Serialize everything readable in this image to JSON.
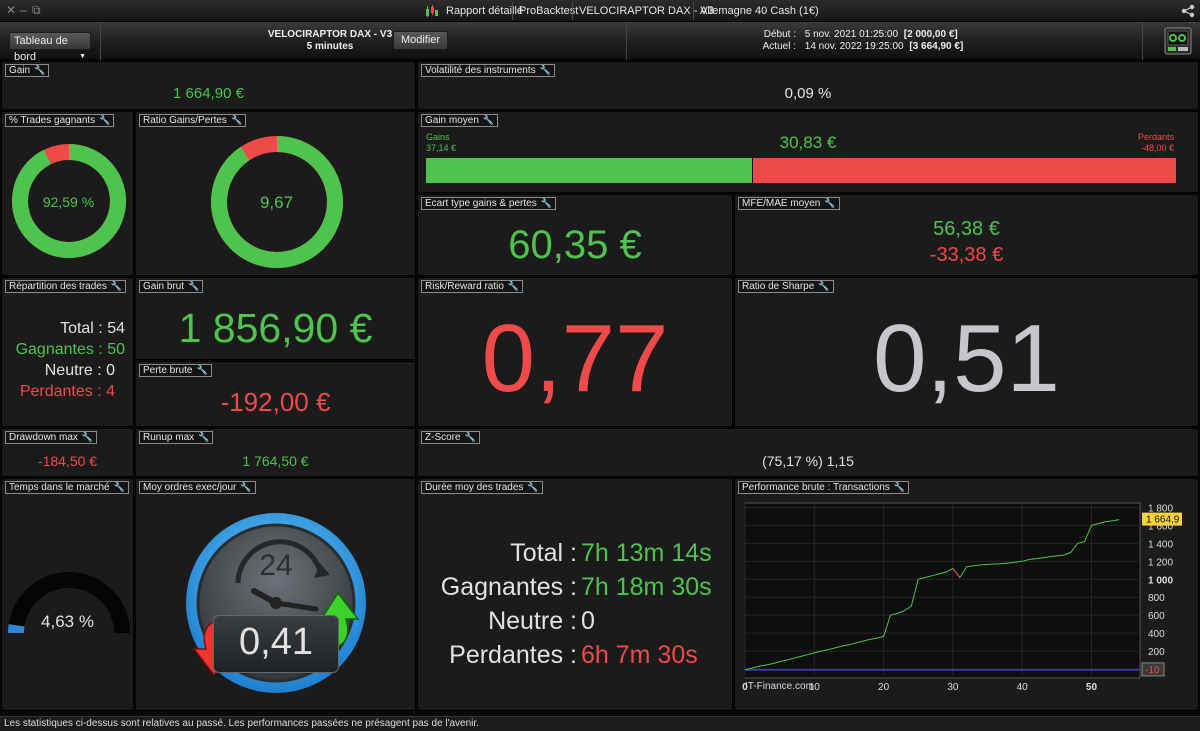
{
  "window": {
    "tabs": [
      "Rapport détaillé",
      "ProBacktest",
      "VELOCIRAPTOR DAX - V3",
      "Allemagne 40 Cash (1€)"
    ],
    "controls": [
      "✕",
      "–",
      "⧉"
    ]
  },
  "toolbar": {
    "dashboard_label": "Tableau de bord",
    "strategy_name": "VELOCIRAPTOR DAX - V3",
    "timeframe": "5 minutes",
    "modify_label": "Modifier",
    "start_label": "Début :",
    "start_date": "5 nov. 2021 01:25:00",
    "start_value": "[2 000,00 €]",
    "current_label": "Actuel :",
    "current_date": "14 nov. 2022 19:25:00",
    "current_value": "[3 664,90 €]"
  },
  "panels": {
    "gain": {
      "label": "Gain",
      "value": "1 664,90 €"
    },
    "volatility": {
      "label": "Volatilité des instruments",
      "value": "0,09 %"
    },
    "win_pct": {
      "label": "% Trades gagnants",
      "value": "92,59 %",
      "fraction": 0.9259
    },
    "ratio": {
      "label": "Ratio Gains/Pertes",
      "value": "9,67",
      "fraction": 0.9063
    },
    "avg_gain": {
      "label": "Gain moyen",
      "gains_label": "Gains",
      "gains_value": "37,14 €",
      "losses_label": "Perdants",
      "losses_value": "-48,00 €",
      "value": "30,83 €",
      "gain_fraction": 0.436
    },
    "std": {
      "label": "Ecart type gains & pertes",
      "value": "60,35 €"
    },
    "mfe": {
      "label": "MFE/MAE moyen",
      "mfe": "56,38 €",
      "mae": "-33,38 €"
    },
    "distribution": {
      "label": "Répartition des trades",
      "total": "Total : 54",
      "winners": "Gagnantes : 50",
      "neutral": "Neutre : 0",
      "losers": "Perdantes : 4"
    },
    "gross_gain": {
      "label": "Gain brut",
      "value": "1 856,90 €"
    },
    "gross_loss": {
      "label": "Perte brute",
      "value": "-192,00 €"
    },
    "risk_reward": {
      "label": "Risk/Reward ratio",
      "value": "0,77"
    },
    "sharpe": {
      "label": "Ratio de Sharpe",
      "value": "0,51"
    },
    "drawdown": {
      "label": "Drawdown max",
      "value": "-184,50 €"
    },
    "runup": {
      "label": "Runup max",
      "value": "1 764,50 €"
    },
    "zscore": {
      "label": "Z-Score",
      "value": "(75,17 %) 1,15"
    },
    "market_time": {
      "label": "Temps dans le marché",
      "value": "4,63 %",
      "fraction": 0.0463
    },
    "orders": {
      "label": "Moy ordres exec/jour",
      "value": "0,41",
      "clock_label": "24"
    },
    "duration": {
      "label": "Durée moy des trades",
      "total_label": "Total :",
      "total_value": "7h 13m 14s",
      "win_label": "Gagnantes :",
      "win_value": "7h 18m 30s",
      "neutral_label": "Neutre :",
      "neutral_value": "0",
      "lose_label": "Perdantes :",
      "lose_value": "6h 7m 30s"
    },
    "perf": {
      "label": "Performance brute : Transactions",
      "watermark": "IT-Finance.com"
    }
  },
  "footer": {
    "text": "Les statistiques ci-dessus sont relatives au passé. Les performances passées ne présagent pas de l'avenir."
  },
  "chart_data": {
    "type": "line",
    "title": "Performance brute : Transactions",
    "xlim": [
      0,
      57
    ],
    "ylim": [
      -100,
      1850
    ],
    "x_ticks": [
      0,
      10,
      20,
      30,
      40,
      50
    ],
    "y_ticks": [
      1800,
      1600,
      1400,
      1200,
      1000,
      800,
      600,
      400,
      200,
      0,
      -10
    ],
    "last_value_label": "1 664,9",
    "baseline_label": "-10",
    "series": [
      {
        "color": "#4ec44e",
        "x": [
          0,
          1,
          2,
          3,
          4,
          5,
          6,
          7,
          8,
          9,
          10,
          11,
          12,
          13,
          14,
          15,
          16,
          17,
          18,
          19,
          20,
          21,
          22,
          23,
          24,
          25,
          26,
          27,
          28,
          29,
          30,
          31,
          32,
          33,
          34,
          35,
          36,
          37,
          38,
          39,
          40,
          41,
          42,
          43,
          44,
          45,
          46,
          47,
          48,
          49,
          50,
          51,
          52,
          53,
          54
        ],
        "values": [
          -10,
          10,
          30,
          45,
          60,
          80,
          100,
          120,
          140,
          160,
          180,
          200,
          215,
          235,
          255,
          270,
          290,
          310,
          330,
          345,
          365,
          600,
          620,
          650,
          700,
          1000,
          1020,
          1040,
          1060,
          1080,
          1120,
          1020,
          1140,
          1150,
          1160,
          1165,
          1170,
          1175,
          1180,
          1190,
          1200,
          1220,
          1230,
          1240,
          1250,
          1260,
          1270,
          1300,
          1400,
          1420,
          1600,
          1620,
          1640,
          1650,
          1665
        ]
      }
    ],
    "baseline": {
      "color": "#3b40c8",
      "value": -10
    }
  }
}
